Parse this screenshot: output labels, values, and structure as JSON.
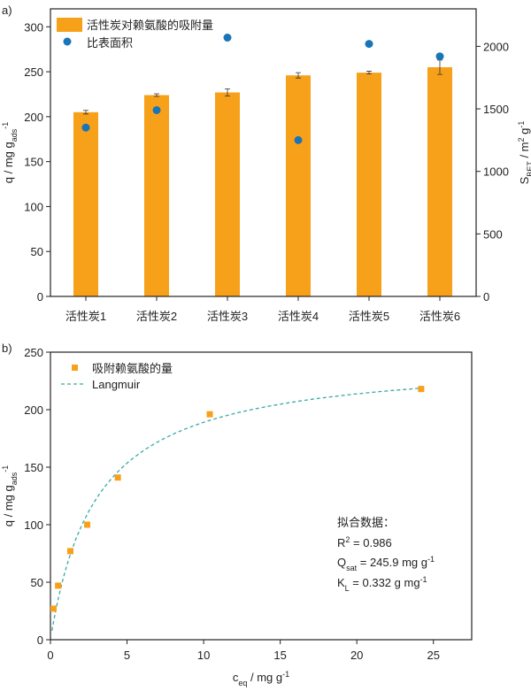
{
  "colors": {
    "bar": "#f7a11a",
    "dot": "#1a74b8",
    "square": "#f7a11a",
    "fit": "#3aa8a8",
    "axis": "#222222"
  },
  "chart_data": [
    {
      "panel_label": "a)",
      "type": "bar",
      "categories": [
        "活性炭1",
        "活性炭2",
        "活性炭3",
        "活性炭4",
        "活性炭5",
        "活性炭6"
      ],
      "series": [
        {
          "name": "活性炭对赖氨酸的吸附量",
          "axis": "left",
          "type": "bar",
          "values": [
            205,
            224,
            227,
            246,
            249,
            255
          ],
          "errors": [
            2,
            1.5,
            4,
            3,
            1.5,
            8
          ]
        },
        {
          "name": "比表面积",
          "axis": "right",
          "type": "scatter",
          "values": [
            1350,
            1490,
            2070,
            1250,
            2020,
            1920
          ]
        }
      ],
      "ylabel": {
        "main": "q / mg g",
        "sub": "ads",
        "sup": "-1"
      },
      "y2label": {
        "main": "S",
        "sub": "BET",
        "rest": " / m",
        "sup": "2",
        "rest2": " g",
        "sup2": "-1"
      },
      "ylim": [
        0,
        320
      ],
      "y2lim": [
        0,
        2300
      ],
      "yticks": [
        0,
        50,
        100,
        150,
        200,
        250,
        300
      ],
      "y2ticks": [
        0,
        500,
        1000,
        1500,
        2000
      ],
      "legend": "top-left",
      "grid": false
    },
    {
      "panel_label": "b)",
      "type": "scatter",
      "series": [
        {
          "name": "吸附赖氨酸的量",
          "type": "scatter",
          "x": [
            0.2,
            0.5,
            1.3,
            2.4,
            4.4,
            10.4,
            24.2
          ],
          "y": [
            27,
            47,
            77,
            100,
            141,
            196,
            218
          ]
        },
        {
          "name": "Langmuir",
          "type": "line",
          "style": "dashed",
          "model": "q = Qsat*KL*c/(1+KL*c)",
          "Qsat": 245.9,
          "KL": 0.332,
          "x_range": [
            0.1,
            24.2
          ]
        }
      ],
      "xlabel": {
        "main": "c",
        "sub": "eq",
        "rest": " / mg g",
        "sup": "-1"
      },
      "ylabel": {
        "main": "q / mg g",
        "sub": "ads",
        "sup": "-1"
      },
      "xlim": [
        0,
        27.5
      ],
      "ylim": [
        0,
        250
      ],
      "xticks": [
        0,
        5,
        10,
        15,
        20,
        25
      ],
      "yticks": [
        0,
        50,
        100,
        150,
        200,
        250
      ],
      "legend": "top-left",
      "grid": false,
      "annotation": {
        "title": "拟合数据：",
        "r2": {
          "main": "R",
          "sup": "2",
          "rest": " = 0.986"
        },
        "qsat": {
          "main": "Q",
          "sub": "sat",
          "rest": " = 245.9 mg g",
          "sup": "-1"
        },
        "kl": {
          "main": "K",
          "sub": "L",
          "rest": " = 0.332 g mg",
          "sup": "-1"
        }
      }
    }
  ]
}
